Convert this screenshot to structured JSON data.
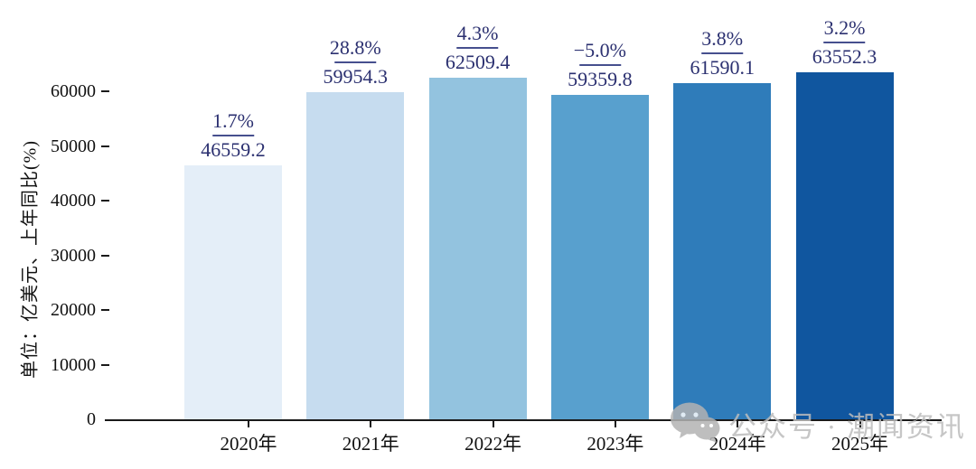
{
  "watermark": {
    "text": "公众号 · 潮闻资讯",
    "icon": "wechat-icon"
  },
  "chart_data": {
    "type": "bar",
    "title": "",
    "categories": [
      "2020年",
      "2021年",
      "2022年",
      "2023年",
      "2024年",
      "2025年"
    ],
    "values": [
      46559.2,
      59954.3,
      62509.4,
      59359.8,
      61590.1,
      63552.3
    ],
    "value_labels": [
      "46559.2",
      "59954.3",
      "62509.4",
      "59359.8",
      "61590.1",
      "63552.3"
    ],
    "growth_labels": [
      "1.7%",
      "28.8%",
      "4.3%",
      "−5.0%",
      "3.8%",
      "3.2%"
    ],
    "ylabel": "单位：亿美元、上年同比(%)",
    "xlabel": "",
    "yticks": [
      0,
      10000,
      20000,
      30000,
      40000,
      50000,
      60000
    ],
    "ylim": [
      0,
      77000
    ],
    "grid": false,
    "legend": "none",
    "bar_colors": [
      "#e4eef8",
      "#c6dcef",
      "#93c3df",
      "#58a0ce",
      "#2f7cba",
      "#10569f"
    ],
    "annotation_color": "#2b3070",
    "axis_color": "#1a1a1a"
  }
}
